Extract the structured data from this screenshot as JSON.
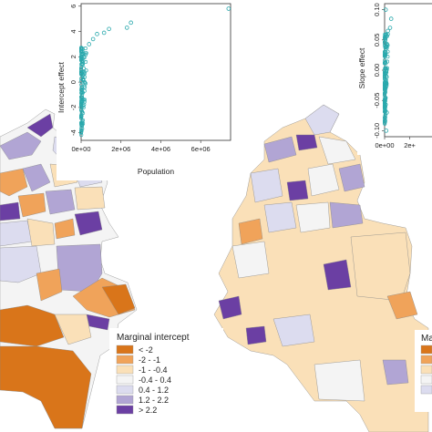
{
  "colors": {
    "lt_-2": "#d9751a",
    "-2_-1": "#f0a35a",
    "-1_-0.4": "#fae0b8",
    "-0.4_0.4": "#f4f4f4",
    "0.4_1.2": "#dcdcef",
    "1.2_2.2": "#b1a5d4",
    "gt_2.2": "#6b3fa3",
    "scatter_point": "#2aa9ad"
  },
  "left_panel": {
    "legend": {
      "title": "Marginal intercept",
      "items": [
        {
          "label": "< -2",
          "color_key": "lt_-2"
        },
        {
          "label": "-2 - -1",
          "color_key": "-2_-1"
        },
        {
          "label": "-1 - -0.4",
          "color_key": "-1_-0.4"
        },
        {
          "label": "-0.4 - 0.4",
          "color_key": "-0.4_0.4"
        },
        {
          "label": "0.4 - 1.2",
          "color_key": "0.4_1.2"
        },
        {
          "label": "1.2 - 2.2",
          "color_key": "1.2_2.2"
        },
        {
          "label": "> 2.2",
          "color_key": "gt_2.2"
        }
      ]
    },
    "inset": {
      "ylabel": "Intercept effect",
      "xlabel": "Population",
      "y_ticks": [
        "6",
        "4",
        "2",
        "0",
        "-2",
        "-4"
      ],
      "x_ticks": [
        "0e+00",
        "2e+06",
        "4e+06",
        "6e+06"
      ]
    }
  },
  "right_panel": {
    "legend": {
      "title_visible": "Marg"
    },
    "inset": {
      "ylabel": "Slope effect",
      "y_ticks": [
        "0.10",
        "0.05",
        "0.00",
        "-0.05",
        "-0.10"
      ],
      "x_ticks": [
        "0e+00",
        "2e+"
      ]
    }
  },
  "chart_data": [
    {
      "type": "scatter",
      "xlabel": "Population",
      "ylabel": "Intercept effect",
      "xlim": [
        0,
        7500000
      ],
      "ylim": [
        -4.6,
        6.2
      ],
      "cluster": {
        "x_max": 300000,
        "y_min": -4.2,
        "y_max": 2.8,
        "n": 140
      },
      "points": [
        {
          "x": 400000,
          "y": 3.0
        },
        {
          "x": 600000,
          "y": 3.4
        },
        {
          "x": 800000,
          "y": 3.8
        },
        {
          "x": 1150000,
          "y": 3.9
        },
        {
          "x": 1400000,
          "y": 4.2
        },
        {
          "x": 2300000,
          "y": 4.3
        },
        {
          "x": 2500000,
          "y": 4.7
        },
        {
          "x": 7400000,
          "y": 5.8
        }
      ]
    },
    {
      "type": "scatter",
      "ylabel": "Slope effect",
      "xlim": [
        0,
        1000000
      ],
      "ylim": [
        -0.11,
        0.11
      ],
      "cluster": {
        "x_max": 60000,
        "y_min": -0.09,
        "y_max": 0.06,
        "n": 160
      },
      "points": [
        {
          "x": 60000,
          "y": 0.065
        },
        {
          "x": 100000,
          "y": 0.07
        },
        {
          "x": 120000,
          "y": 0.085
        },
        {
          "x": 40000,
          "y": -0.07
        },
        {
          "x": 30000,
          "y": -0.1
        },
        {
          "x": 20000,
          "y": 0.1
        }
      ]
    }
  ]
}
